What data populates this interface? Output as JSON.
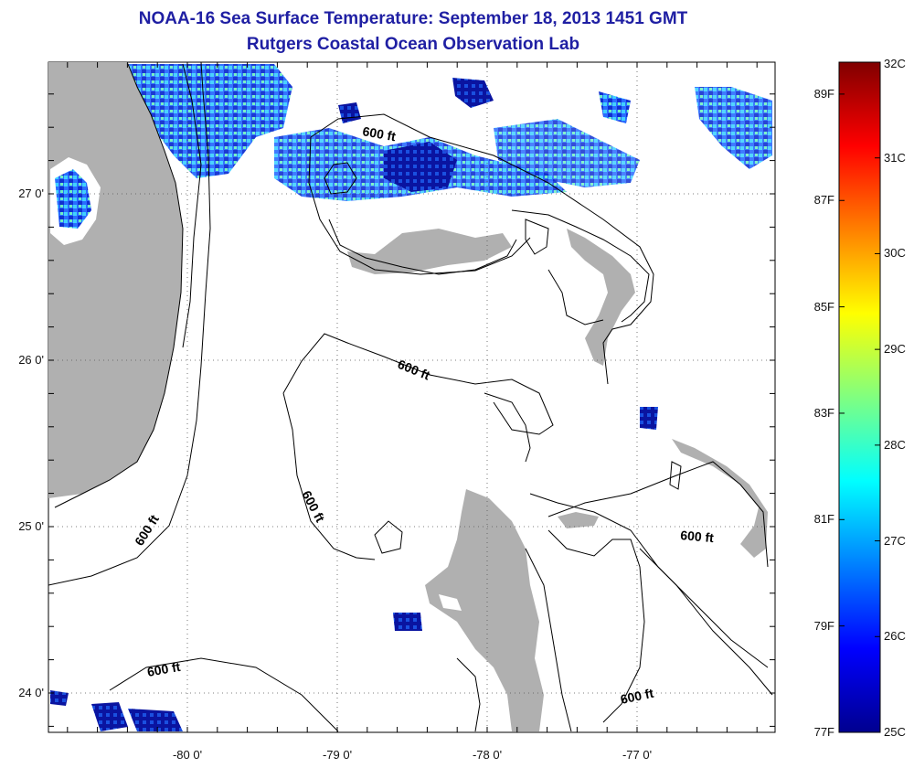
{
  "title_line1": "NOAA-16 Sea Surface Temperature:  September 18, 2013 1451 GMT",
  "title_line2": "Rutgers Coastal Ocean Observation Lab",
  "lat_ticks": [
    {
      "label": "27 0'",
      "value": 27
    },
    {
      "label": "26 0'",
      "value": 26
    },
    {
      "label": "25 0'",
      "value": 25
    },
    {
      "label": "24 0'",
      "value": 24
    }
  ],
  "lon_ticks": [
    {
      "label": "-80 0'",
      "value": -80
    },
    {
      "label": "-79 0'",
      "value": -79
    },
    {
      "label": "-78 0'",
      "value": -78
    },
    {
      "label": "-77 0'",
      "value": -77
    }
  ],
  "contour_labels": [
    {
      "text": "600 ft",
      "id": "contour-label-north"
    },
    {
      "text": "600 ft",
      "id": "contour-label-center"
    },
    {
      "text": "600 ft",
      "id": "contour-label-west"
    },
    {
      "text": "600 ft",
      "id": "contour-label-florida"
    },
    {
      "text": "600 ft",
      "id": "contour-label-east"
    },
    {
      "text": "600 ft",
      "id": "contour-label-southwest"
    },
    {
      "text": "600 ft",
      "id": "contour-label-southeast"
    }
  ],
  "colorbar": {
    "celsius": [
      "32C",
      "31C",
      "30C",
      "29C",
      "28C",
      "27C",
      "26C",
      "25C"
    ],
    "fahrenheit": [
      "89F",
      "87F",
      "85F",
      "83F",
      "81F",
      "79F",
      "77F"
    ],
    "celsius_range": [
      25,
      32
    ],
    "colors": [
      "#00008f",
      "#0000ff",
      "#0080ff",
      "#00ffff",
      "#80ff80",
      "#ffff00",
      "#ff8000",
      "#ff0000",
      "#800000"
    ]
  },
  "colors": {
    "land": "#b0b0b0",
    "title": "#1f1fa3"
  }
}
